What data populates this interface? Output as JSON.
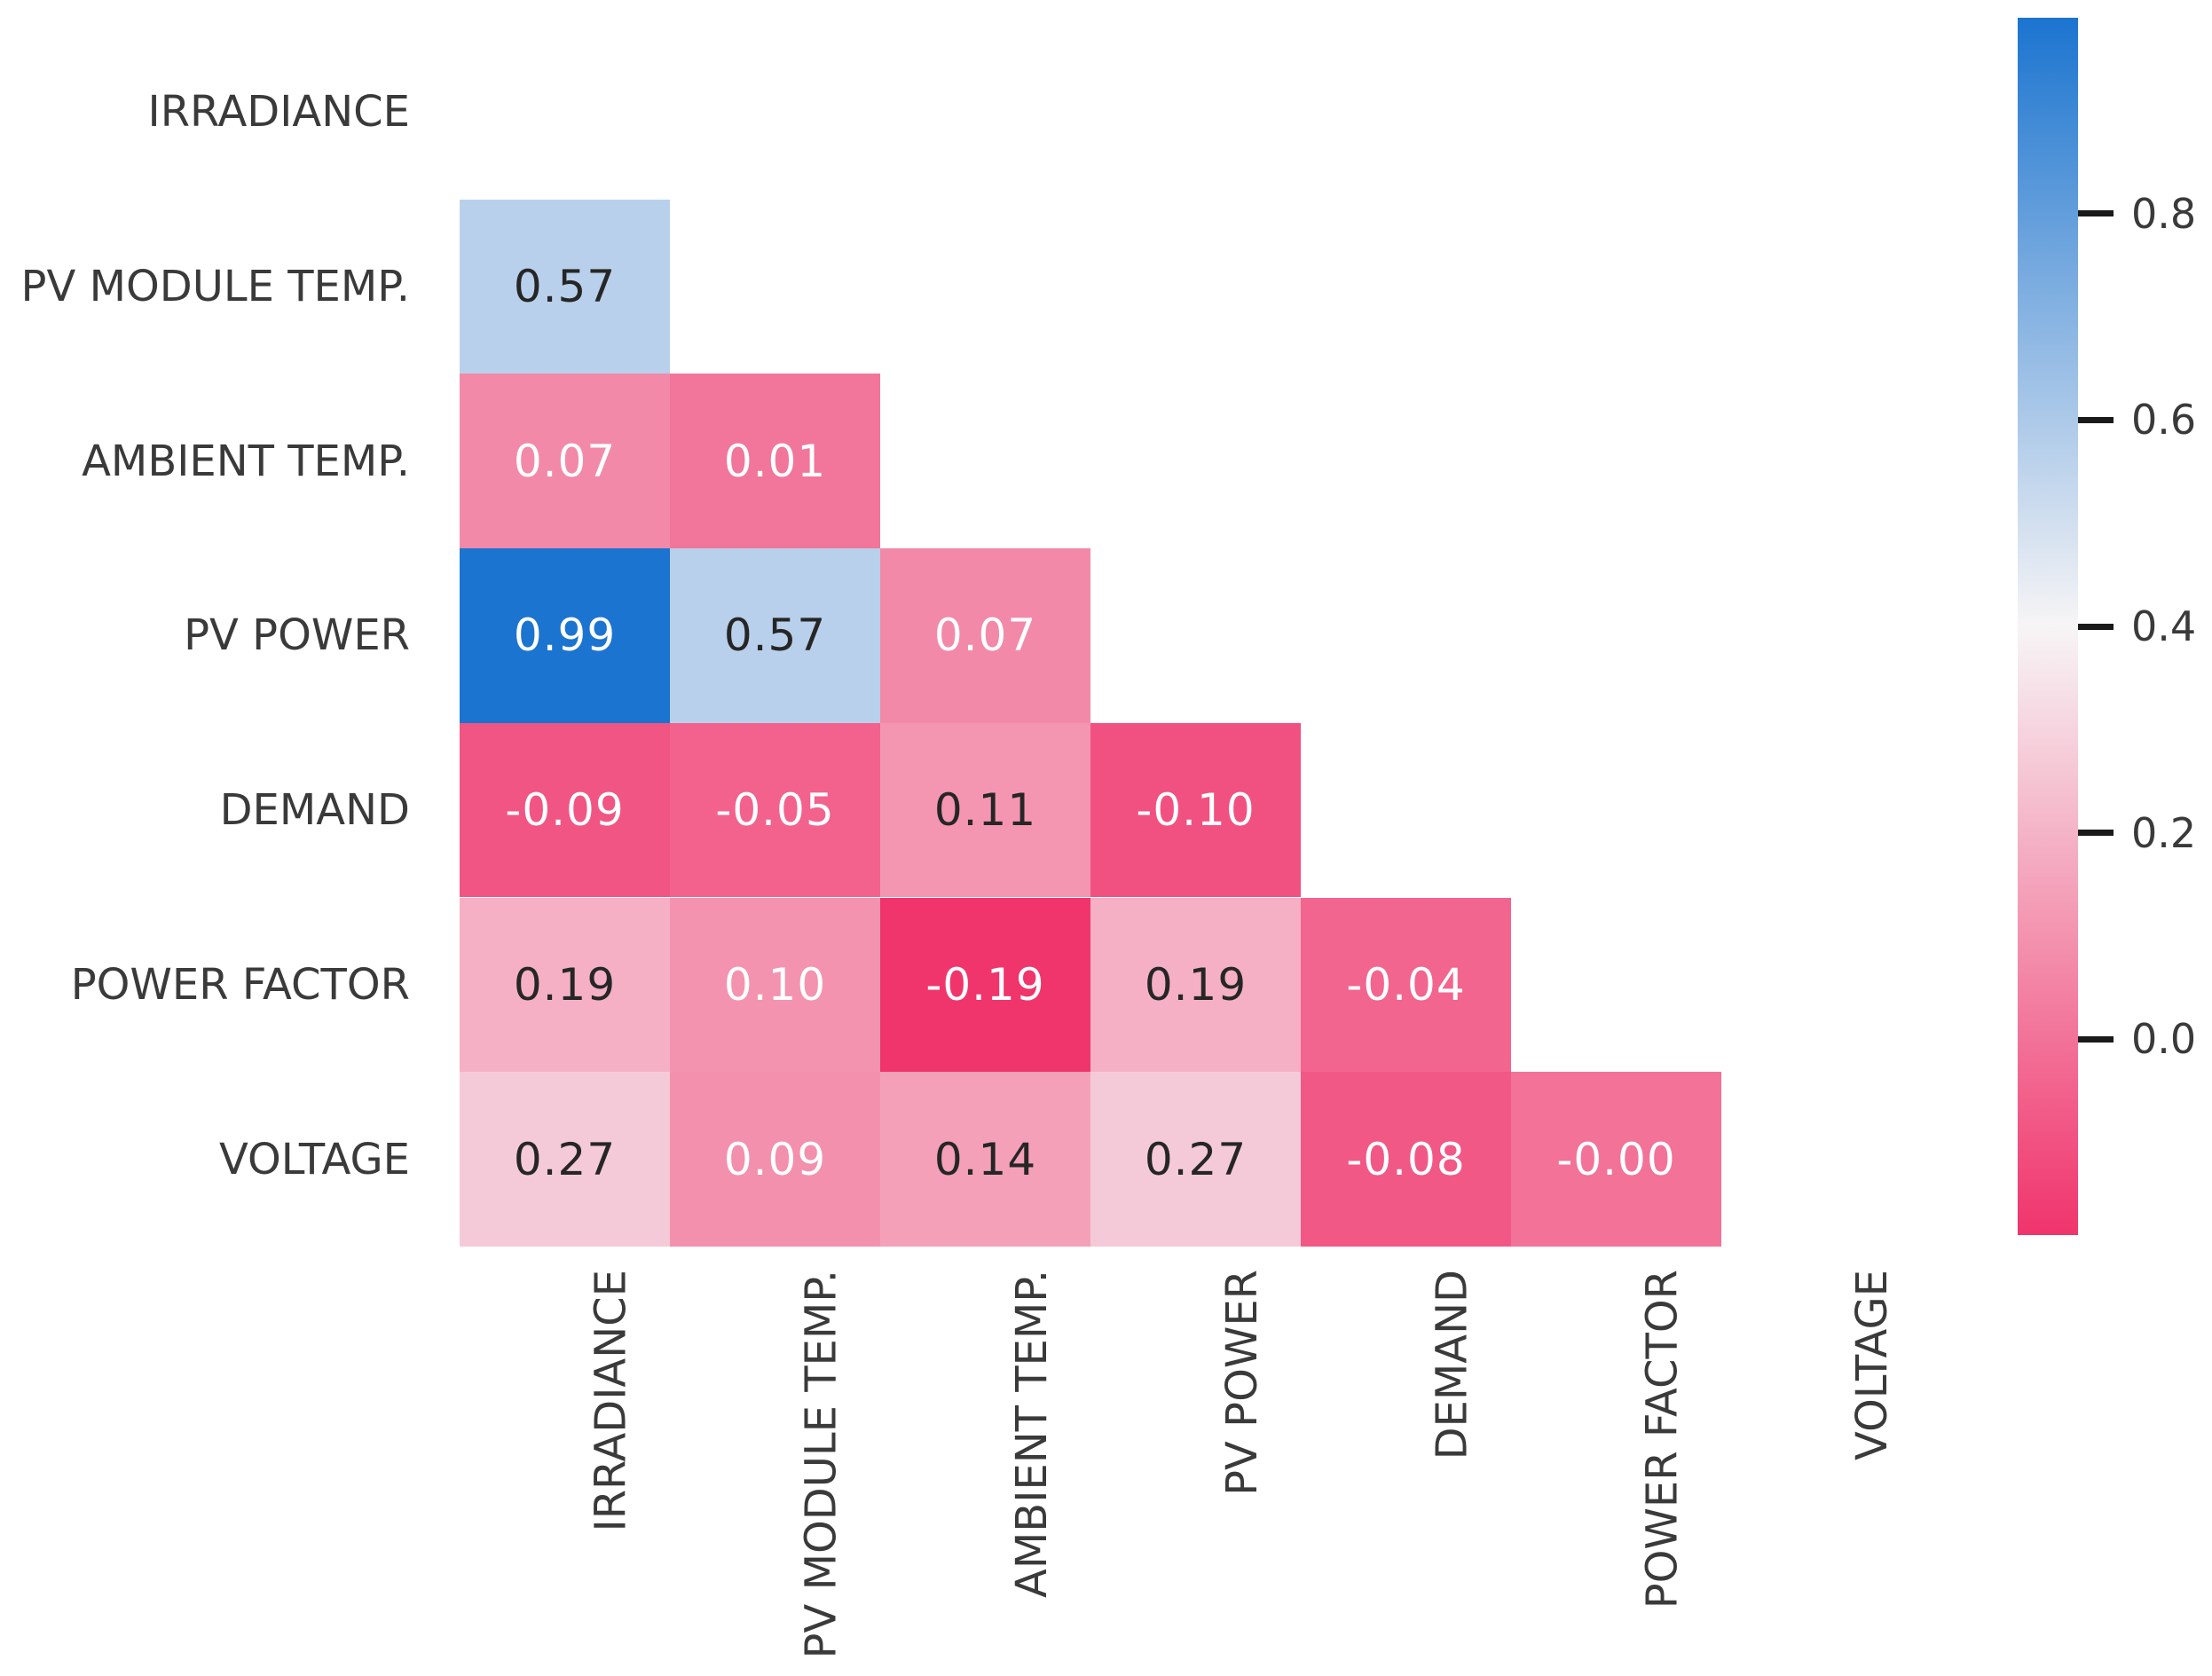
{
  "figure": {
    "background": "#ffffff",
    "description": "Lower-triangle correlation matrix heatmap of PV system variables with vertical colorbar"
  },
  "chart_data": {
    "type": "heatmap",
    "subtype": "correlation-matrix-lower-triangle",
    "title": "",
    "xlabel": "",
    "ylabel": "",
    "grid": false,
    "legend_position": "colorbar-right",
    "variables": [
      "IRRADIANCE",
      "PV MODULE TEMP.",
      "AMBIENT TEMP.",
      "PV POWER",
      "DEMAND",
      "POWER FACTOR",
      "VOLTAGE"
    ],
    "y_tick_labels": [
      "IRRADIANCE",
      "PV MODULE TEMP.",
      "AMBIENT TEMP.",
      "PV POWER",
      "DEMAND",
      "POWER FACTOR",
      "VOLTAGE"
    ],
    "x_tick_labels": [
      "IRRADIANCE",
      "PV MODULE TEMP.",
      "AMBIENT TEMP.",
      "PV POWER",
      "DEMAND",
      "POWER FACTOR",
      "VOLTAGE"
    ],
    "mask": "diagonal-and-upper-triangle-hidden",
    "rows": [
      {
        "label": "IRRADIANCE",
        "cells": []
      },
      {
        "label": "PV MODULE TEMP.",
        "cells": [
          {
            "col": 0,
            "text": "0.57",
            "value": 0.57,
            "text_color": "dark"
          }
        ]
      },
      {
        "label": "AMBIENT TEMP.",
        "cells": [
          {
            "col": 0,
            "text": "0.07",
            "value": 0.07,
            "text_color": "white"
          },
          {
            "col": 1,
            "text": "0.01",
            "value": 0.01,
            "text_color": "white"
          }
        ]
      },
      {
        "label": "PV POWER",
        "cells": [
          {
            "col": 0,
            "text": "0.99",
            "value": 0.99,
            "text_color": "white"
          },
          {
            "col": 1,
            "text": "0.57",
            "value": 0.57,
            "text_color": "dark"
          },
          {
            "col": 2,
            "text": "0.07",
            "value": 0.07,
            "text_color": "white"
          }
        ]
      },
      {
        "label": "DEMAND",
        "cells": [
          {
            "col": 0,
            "text": "-0.09",
            "value": -0.09,
            "text_color": "white"
          },
          {
            "col": 1,
            "text": "-0.05",
            "value": -0.05,
            "text_color": "white"
          },
          {
            "col": 2,
            "text": "0.11",
            "value": 0.11,
            "text_color": "dark"
          },
          {
            "col": 3,
            "text": "-0.10",
            "value": -0.1,
            "text_color": "white"
          }
        ]
      },
      {
        "label": "POWER FACTOR",
        "cells": [
          {
            "col": 0,
            "text": "0.19",
            "value": 0.19,
            "text_color": "dark"
          },
          {
            "col": 1,
            "text": "0.10",
            "value": 0.1,
            "text_color": "white"
          },
          {
            "col": 2,
            "text": "-0.19",
            "value": -0.19,
            "text_color": "white"
          },
          {
            "col": 3,
            "text": "0.19",
            "value": 0.19,
            "text_color": "dark"
          },
          {
            "col": 4,
            "text": "-0.04",
            "value": -0.04,
            "text_color": "white"
          }
        ]
      },
      {
        "label": "VOLTAGE",
        "cells": [
          {
            "col": 0,
            "text": "0.27",
            "value": 0.27,
            "text_color": "dark"
          },
          {
            "col": 1,
            "text": "0.09",
            "value": 0.09,
            "text_color": "white"
          },
          {
            "col": 2,
            "text": "0.14",
            "value": 0.14,
            "text_color": "dark"
          },
          {
            "col": 3,
            "text": "0.27",
            "value": 0.27,
            "text_color": "dark"
          },
          {
            "col": 4,
            "text": "-0.08",
            "value": -0.08,
            "text_color": "white"
          },
          {
            "col": 5,
            "text": "-0.00",
            "value": -0.0,
            "text_color": "white"
          }
        ]
      }
    ],
    "colorbar": {
      "vmin": -0.19,
      "vmax": 0.99,
      "tick_values": [
        0.8,
        0.6,
        0.4,
        0.2,
        0.0
      ],
      "tick_labels": [
        "0.8",
        "0.6",
        "0.4",
        "0.2",
        "0.0"
      ]
    },
    "colors": {
      "cmap_negative_end": "#f0346c",
      "cmap_center": "#f7f5f6",
      "cmap_positive_end": "#1b74cf",
      "annot_dark": "#262626",
      "annot_white": "#ffffff",
      "axis_label": "#3a3a3a",
      "tick_mark": "#1a1a1a"
    }
  }
}
